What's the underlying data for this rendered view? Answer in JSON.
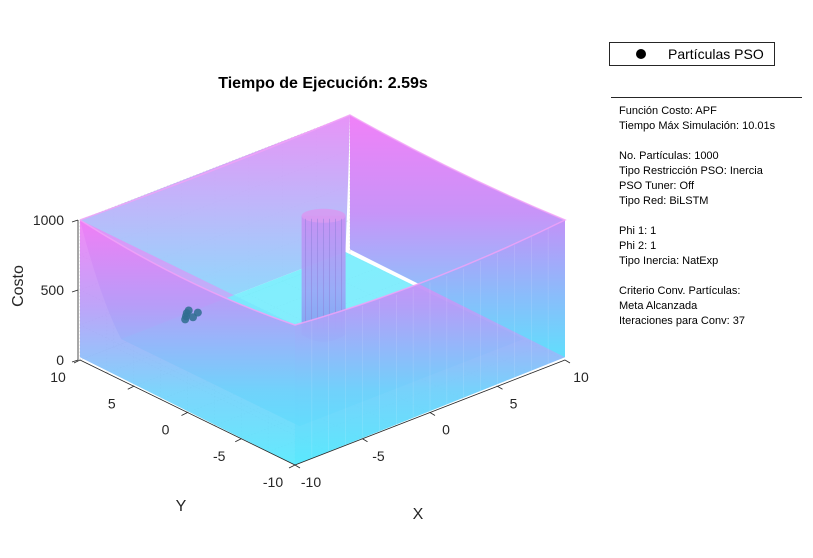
{
  "chart_data": {
    "type": "surface",
    "title": "Tiempo de Ejecución: 2.59s",
    "xlabel": "X",
    "ylabel": "Y",
    "zlabel": "Costo",
    "xlim": [
      -10,
      10
    ],
    "ylim": [
      -10,
      10
    ],
    "zlim": [
      0,
      1000
    ],
    "xticks": [
      -10,
      -5,
      0,
      5,
      10
    ],
    "yticks": [
      -10,
      -5,
      0,
      5,
      10
    ],
    "zticks": [
      0,
      500,
      1000
    ],
    "xtick_labels": [
      "-10",
      "-5",
      "0",
      "5",
      "10"
    ],
    "ytick_labels": [
      "-10",
      "-5",
      "0",
      "5",
      "10"
    ],
    "ztick_labels": [
      "0",
      "500",
      "1000"
    ],
    "grid": true,
    "colormap": "cool",
    "surface": {
      "description_values": "APF cost surface: walls rising to ~1000 near all borders, low flat floor, tall obstacle column near the center",
      "obstacle_center": [
        0,
        0
      ],
      "obstacle_height": 1000
    },
    "series": [
      {
        "name": "Partículas PSO",
        "marker": "filled-circle",
        "color": "#000000",
        "points": [
          [
            -4.3,
            7.3
          ],
          [
            -4.0,
            7.6
          ],
          [
            -3.7,
            7.8
          ],
          [
            -4.6,
            7.0
          ],
          [
            -3.5,
            7.2
          ],
          [
            -4.1,
            6.9
          ]
        ]
      }
    ],
    "legend_position": "top-right-outside"
  },
  "info": {
    "lines": [
      "Función Costo: APF",
      "Tiempo Máx Simulación: 10.01s",
      "",
      "No. Partículas: 1000",
      "Tipo Restricción PSO: Inercia",
      "PSO Tuner: Off",
      "Tipo Red: BiLSTM",
      "",
      "Phi 1: 1",
      "Phi 2: 1",
      "Tipo Inercia: NatExp",
      "",
      "Criterio Conv. Partículas:",
      "Meta Alcanzada",
      "Iteraciones para Conv: 37"
    ]
  }
}
